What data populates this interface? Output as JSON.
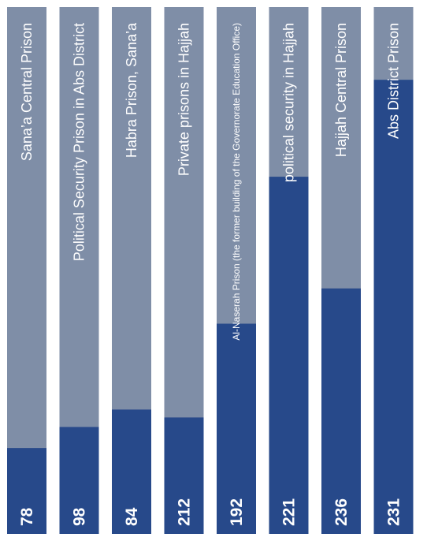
{
  "colors": {
    "background_bar": "#7f8ea7",
    "fill_bar": "#27498a",
    "text": "#ffffff"
  },
  "chart_data": {
    "type": "bar",
    "orientation": "vertical",
    "title": "",
    "xlabel": "",
    "ylabel": "",
    "ylim": [
      0,
      1
    ],
    "categories": [
      "Sana’a Central Prison",
      "Political Security Prison in Abs District",
      "Habra Prison, Sana’a",
      "Private prisons in Hajjah",
      "Al-Naserah Prison (the former building of the Governorate Education Office)",
      "political security in Hajjah",
      "Hajjah Central Prison",
      "Abs District Prison"
    ],
    "value_labels": [
      "78",
      "98",
      "84",
      "212",
      "192",
      "221",
      "236",
      "231"
    ],
    "fill_fraction": [
      0.163,
      0.203,
      0.236,
      0.221,
      0.399,
      0.678,
      0.466,
      0.862
    ]
  }
}
